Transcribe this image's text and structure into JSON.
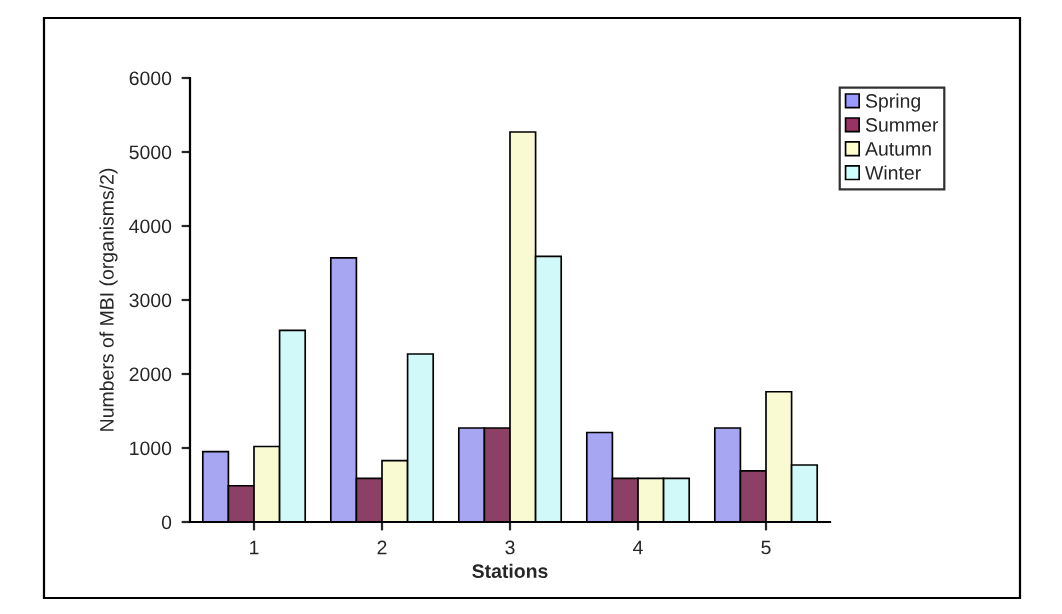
{
  "chart_data": {
    "type": "bar",
    "xlabel": "Stations",
    "ylabel": "Numbers of MBI (organisms/2)",
    "categories": [
      "1",
      "2",
      "3",
      "4",
      "5"
    ],
    "series": [
      {
        "name": "Spring",
        "color": "#9999ff",
        "values": [
          950,
          3570,
          1270,
          1210,
          1270
        ]
      },
      {
        "name": "Summer",
        "color": "#993366",
        "values": [
          490,
          590,
          1270,
          590,
          690
        ]
      },
      {
        "name": "Autumn",
        "color": "#ffffcc",
        "values": [
          1020,
          830,
          5270,
          590,
          1760
        ]
      },
      {
        "name": "Winter",
        "color": "#ccffff",
        "values": [
          2590,
          2270,
          3590,
          590,
          770
        ]
      }
    ],
    "ylim": [
      0,
      6000
    ],
    "yticks": [
      0,
      1000,
      2000,
      3000,
      4000,
      5000,
      6000
    ],
    "grid": false,
    "legend": "right"
  }
}
